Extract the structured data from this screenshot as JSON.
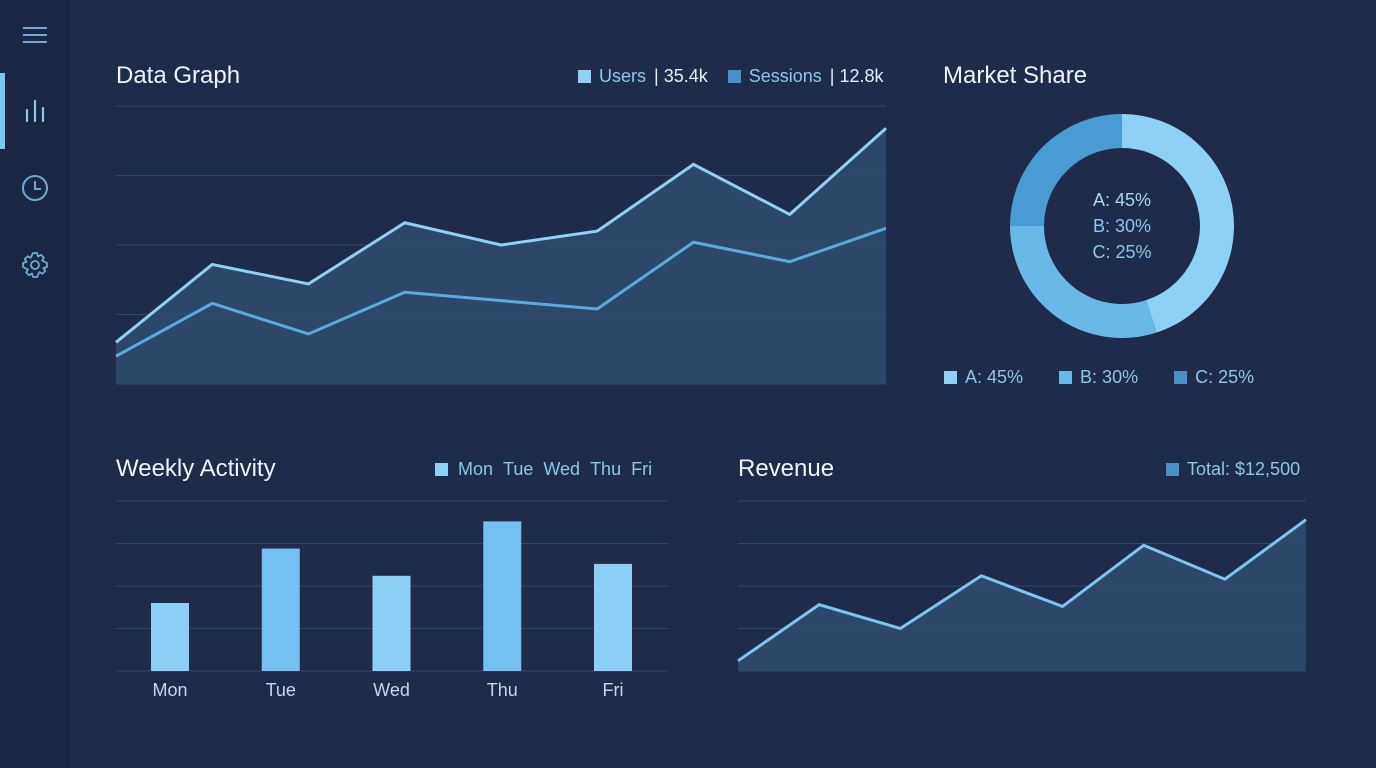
{
  "sidebar": {
    "items": [
      {
        "icon": "menu-icon"
      },
      {
        "icon": "bar-chart-icon",
        "active": true
      },
      {
        "icon": "clock-icon"
      },
      {
        "icon": "gear-icon"
      }
    ]
  },
  "colors": {
    "background": "#1f2b4a",
    "sidebar": "#1b2643",
    "light": "#8fd0f7",
    "mid": "#6ab8e8",
    "dark": "#4a8fc8",
    "area": "#2c4a6e"
  },
  "data_graph": {
    "title": "Data Graph",
    "legend": [
      {
        "label": "Users",
        "value": "| 35.4k"
      },
      {
        "label": "Sessions",
        "value": "| 12.8k"
      }
    ]
  },
  "market_share": {
    "title": "Market Share",
    "center": [
      "A: 45%",
      "B: 30%",
      "C: 25%"
    ],
    "legend": [
      "A: 45%",
      "B: 30%",
      "C: 25%"
    ]
  },
  "weekly": {
    "title": "Weekly Activity",
    "legend": [
      "Mon",
      "Tue",
      "Wed",
      "Thu",
      "Fri"
    ]
  },
  "revenue": {
    "title": "Revenue",
    "legend": "Total: $12,500"
  },
  "chart_data": [
    {
      "type": "area",
      "title": "Data Graph",
      "ylim": [
        0,
        100
      ],
      "grid": true,
      "legend": "top-right",
      "series": [
        {
          "name": "Users",
          "values": [
            15,
            43,
            36,
            58,
            50,
            55,
            79,
            61,
            92
          ]
        },
        {
          "name": "Sessions",
          "values": [
            10,
            29,
            18,
            33,
            30,
            27,
            51,
            44,
            56
          ]
        }
      ]
    },
    {
      "type": "pie",
      "title": "Market Share",
      "categories": [
        "A",
        "B",
        "C"
      ],
      "values": [
        45,
        30,
        25
      ],
      "donut": true,
      "legend": "bottom"
    },
    {
      "type": "bar",
      "title": "Weekly Activity",
      "categories": [
        "Mon",
        "Tue",
        "Wed",
        "Thu",
        "Fri"
      ],
      "values": [
        40,
        72,
        56,
        88,
        63
      ],
      "ylim": [
        0,
        100
      ],
      "grid": true,
      "legend": "top-right"
    },
    {
      "type": "area",
      "title": "Revenue",
      "values": [
        6,
        39,
        25,
        56,
        38,
        74,
        54,
        89
      ],
      "ylim": [
        0,
        100
      ],
      "grid": true,
      "legend": "top-right"
    }
  ]
}
